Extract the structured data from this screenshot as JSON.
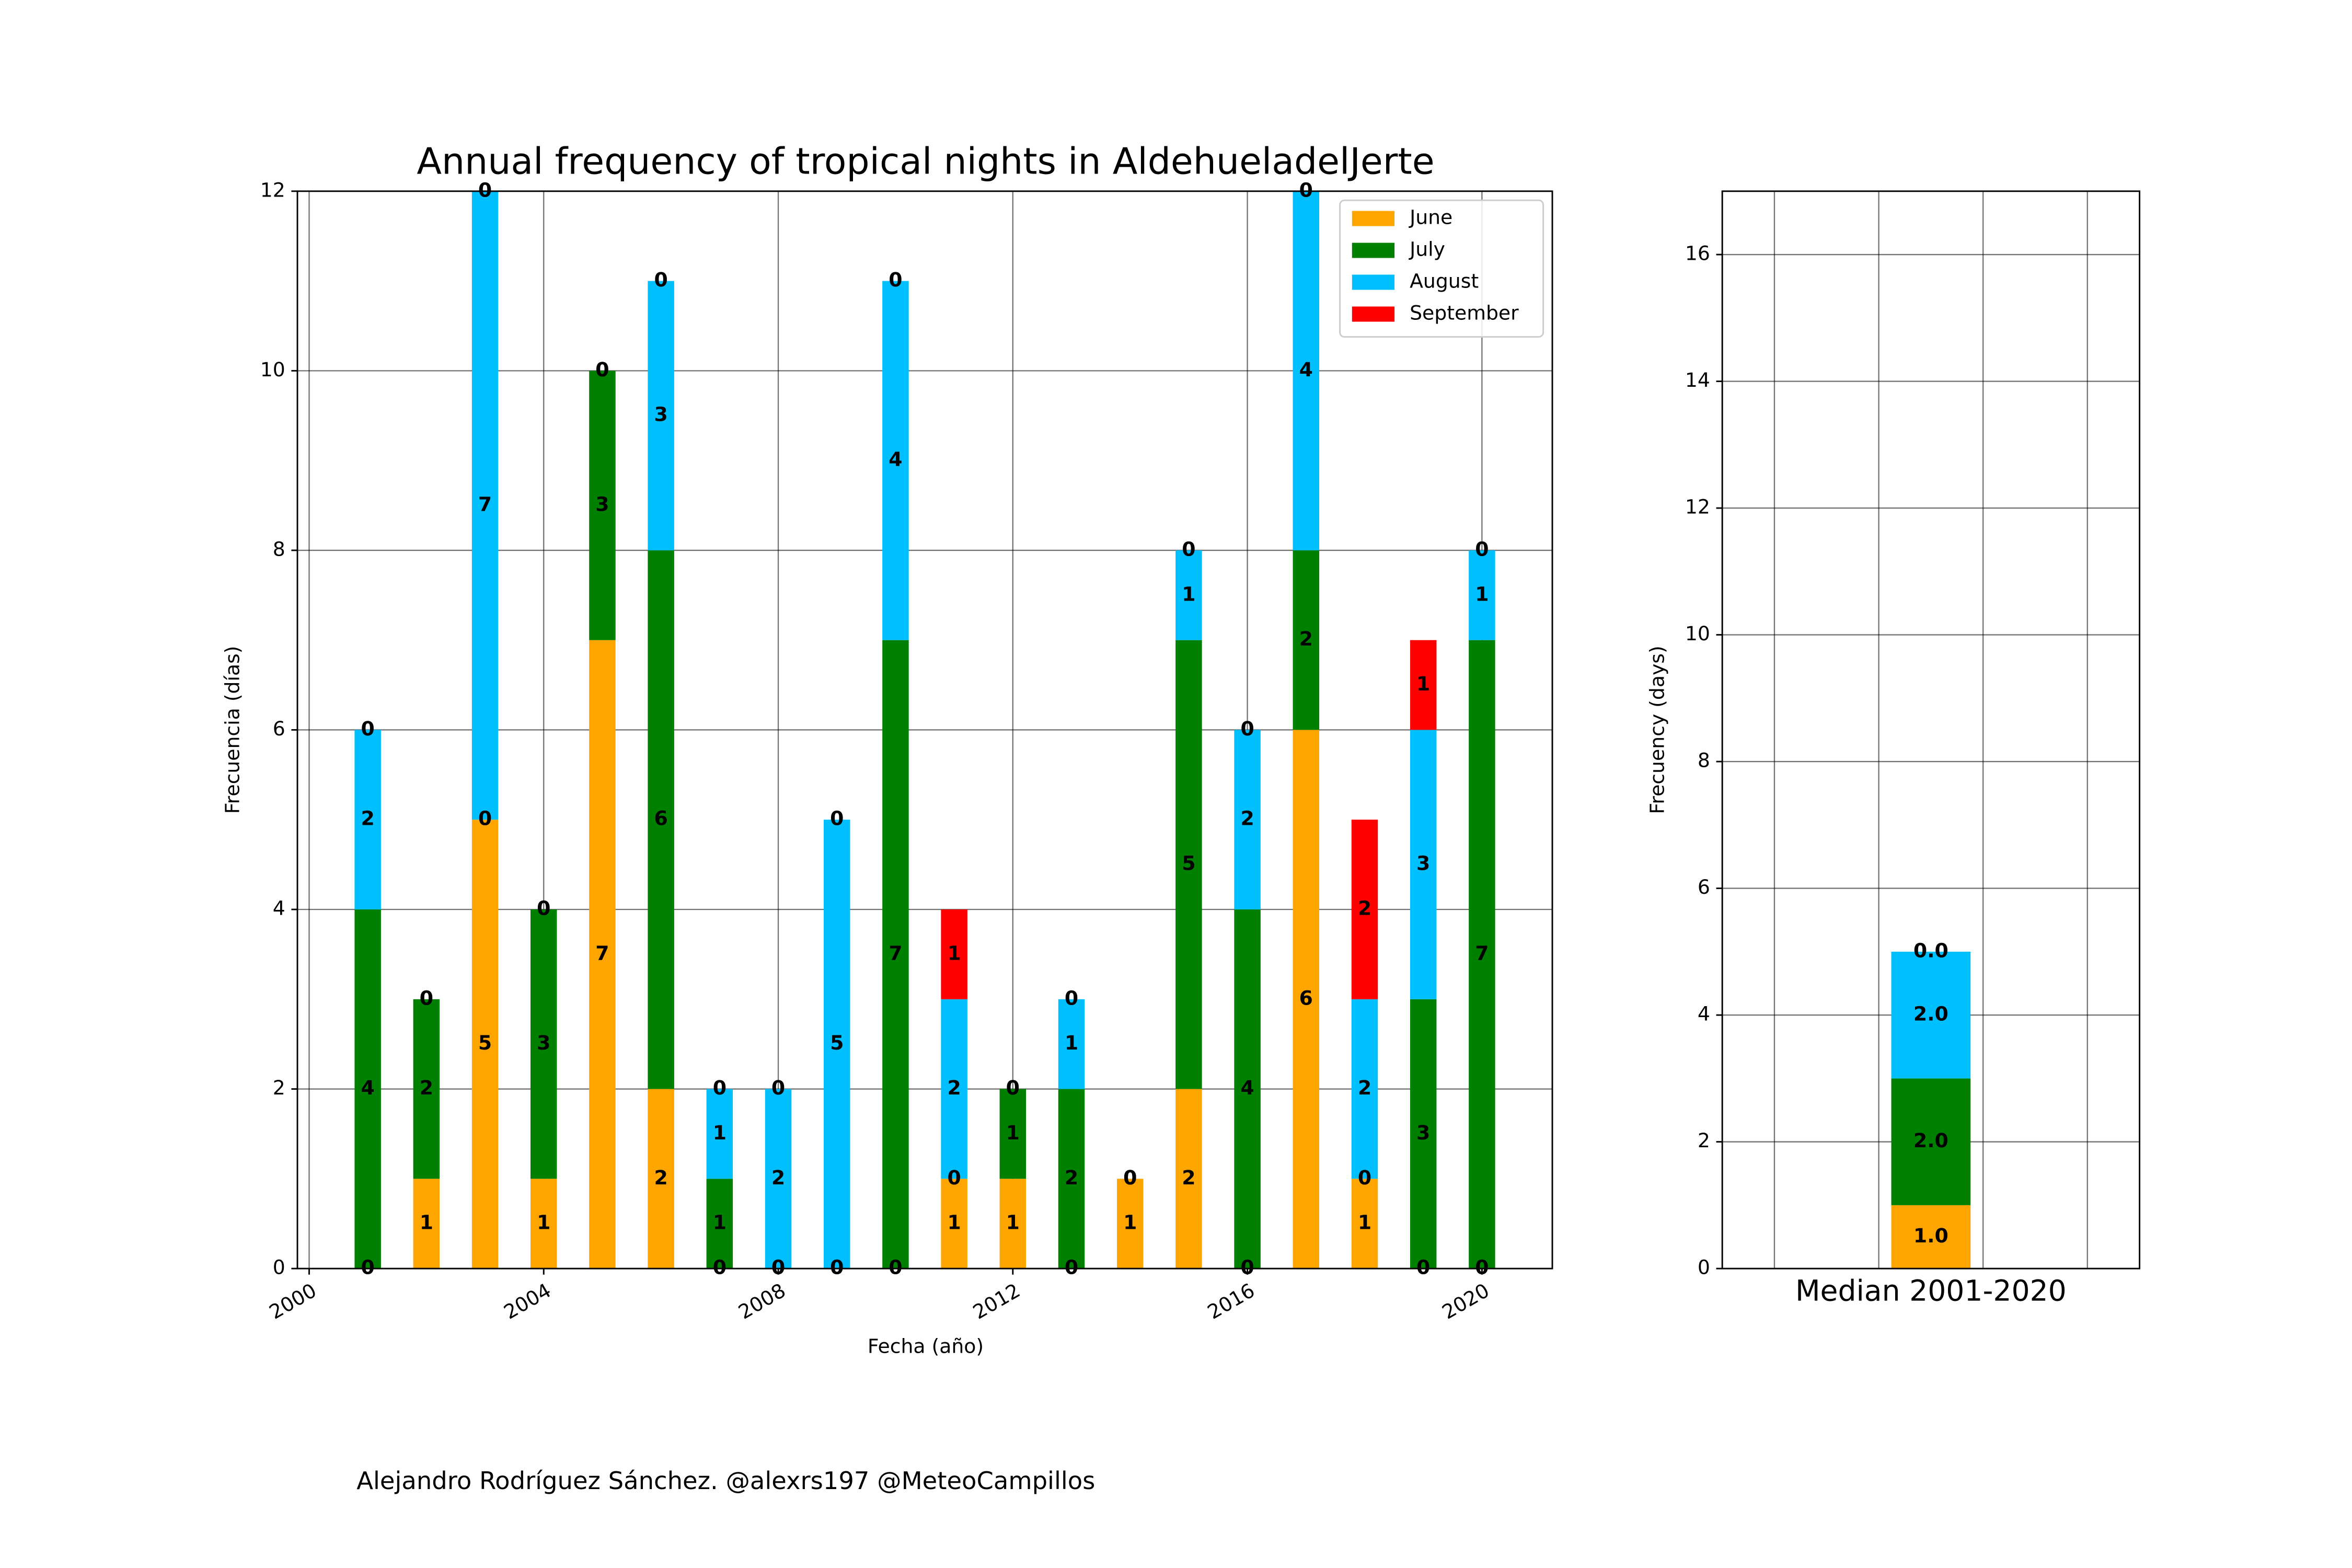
{
  "footer": "Alejandro Rodríguez Sánchez. @alexrs197 @MeteoCampillos",
  "chart_data": [
    {
      "type": "bar",
      "stacked": true,
      "title": "Annual frequency of tropical nights in AldehueladelJerte",
      "x_label": "Fecha (año)",
      "y_label": "Frecuencia (días)",
      "x": [
        2001,
        2002,
        2003,
        2004,
        2005,
        2006,
        2007,
        2008,
        2009,
        2010,
        2011,
        2012,
        2013,
        2014,
        2015,
        2016,
        2017,
        2018,
        2019,
        2020
      ],
      "series": [
        {
          "name": "June",
          "color": "#ffa500",
          "values": [
            0,
            1,
            5,
            1,
            7,
            2,
            0,
            0,
            0,
            0,
            1,
            1,
            0,
            1,
            2,
            0,
            6,
            1,
            0,
            0
          ]
        },
        {
          "name": "July",
          "color": "#008000",
          "values": [
            4,
            2,
            0,
            3,
            3,
            6,
            1,
            0,
            0,
            7,
            0,
            1,
            2,
            0,
            5,
            4,
            2,
            0,
            3,
            7
          ]
        },
        {
          "name": "August",
          "color": "#00bfff",
          "values": [
            2,
            0,
            7,
            0,
            0,
            3,
            1,
            2,
            5,
            4,
            2,
            0,
            1,
            0,
            1,
            2,
            4,
            2,
            3,
            1
          ]
        },
        {
          "name": "September",
          "color": "#ff0000",
          "values": [
            0,
            0,
            0,
            0,
            0,
            0,
            0,
            0,
            0,
            0,
            1,
            0,
            0,
            0,
            0,
            0,
            0,
            2,
            1,
            0
          ]
        }
      ],
      "xlim": [
        1999.8,
        2021.2
      ],
      "xticks": [
        2000,
        2004,
        2008,
        2012,
        2016,
        2020
      ],
      "ylim": [
        0,
        12
      ],
      "yticks": [
        0,
        2,
        4,
        6,
        8,
        10,
        12
      ],
      "grid": true,
      "legend": "upper right"
    },
    {
      "type": "bar",
      "stacked": true,
      "y_label": "Frecuency (days)",
      "categories": [
        "Median 2001-2020"
      ],
      "series": [
        {
          "name": "June",
          "color": "#ffa500",
          "values": [
            1
          ],
          "value_labels": [
            "1.0"
          ]
        },
        {
          "name": "July",
          "color": "#008000",
          "values": [
            2
          ],
          "value_labels": [
            "2.0"
          ]
        },
        {
          "name": "August",
          "color": "#00bfff",
          "values": [
            2
          ],
          "value_labels": [
            "2.0"
          ]
        },
        {
          "name": "September",
          "color": "#ff0000",
          "values": [
            0
          ],
          "value_labels": [
            "0.0"
          ]
        }
      ],
      "ylim": [
        0,
        17
      ],
      "yticks": [
        0,
        2,
        4,
        6,
        8,
        10,
        12,
        14,
        16
      ],
      "grid": true
    }
  ]
}
